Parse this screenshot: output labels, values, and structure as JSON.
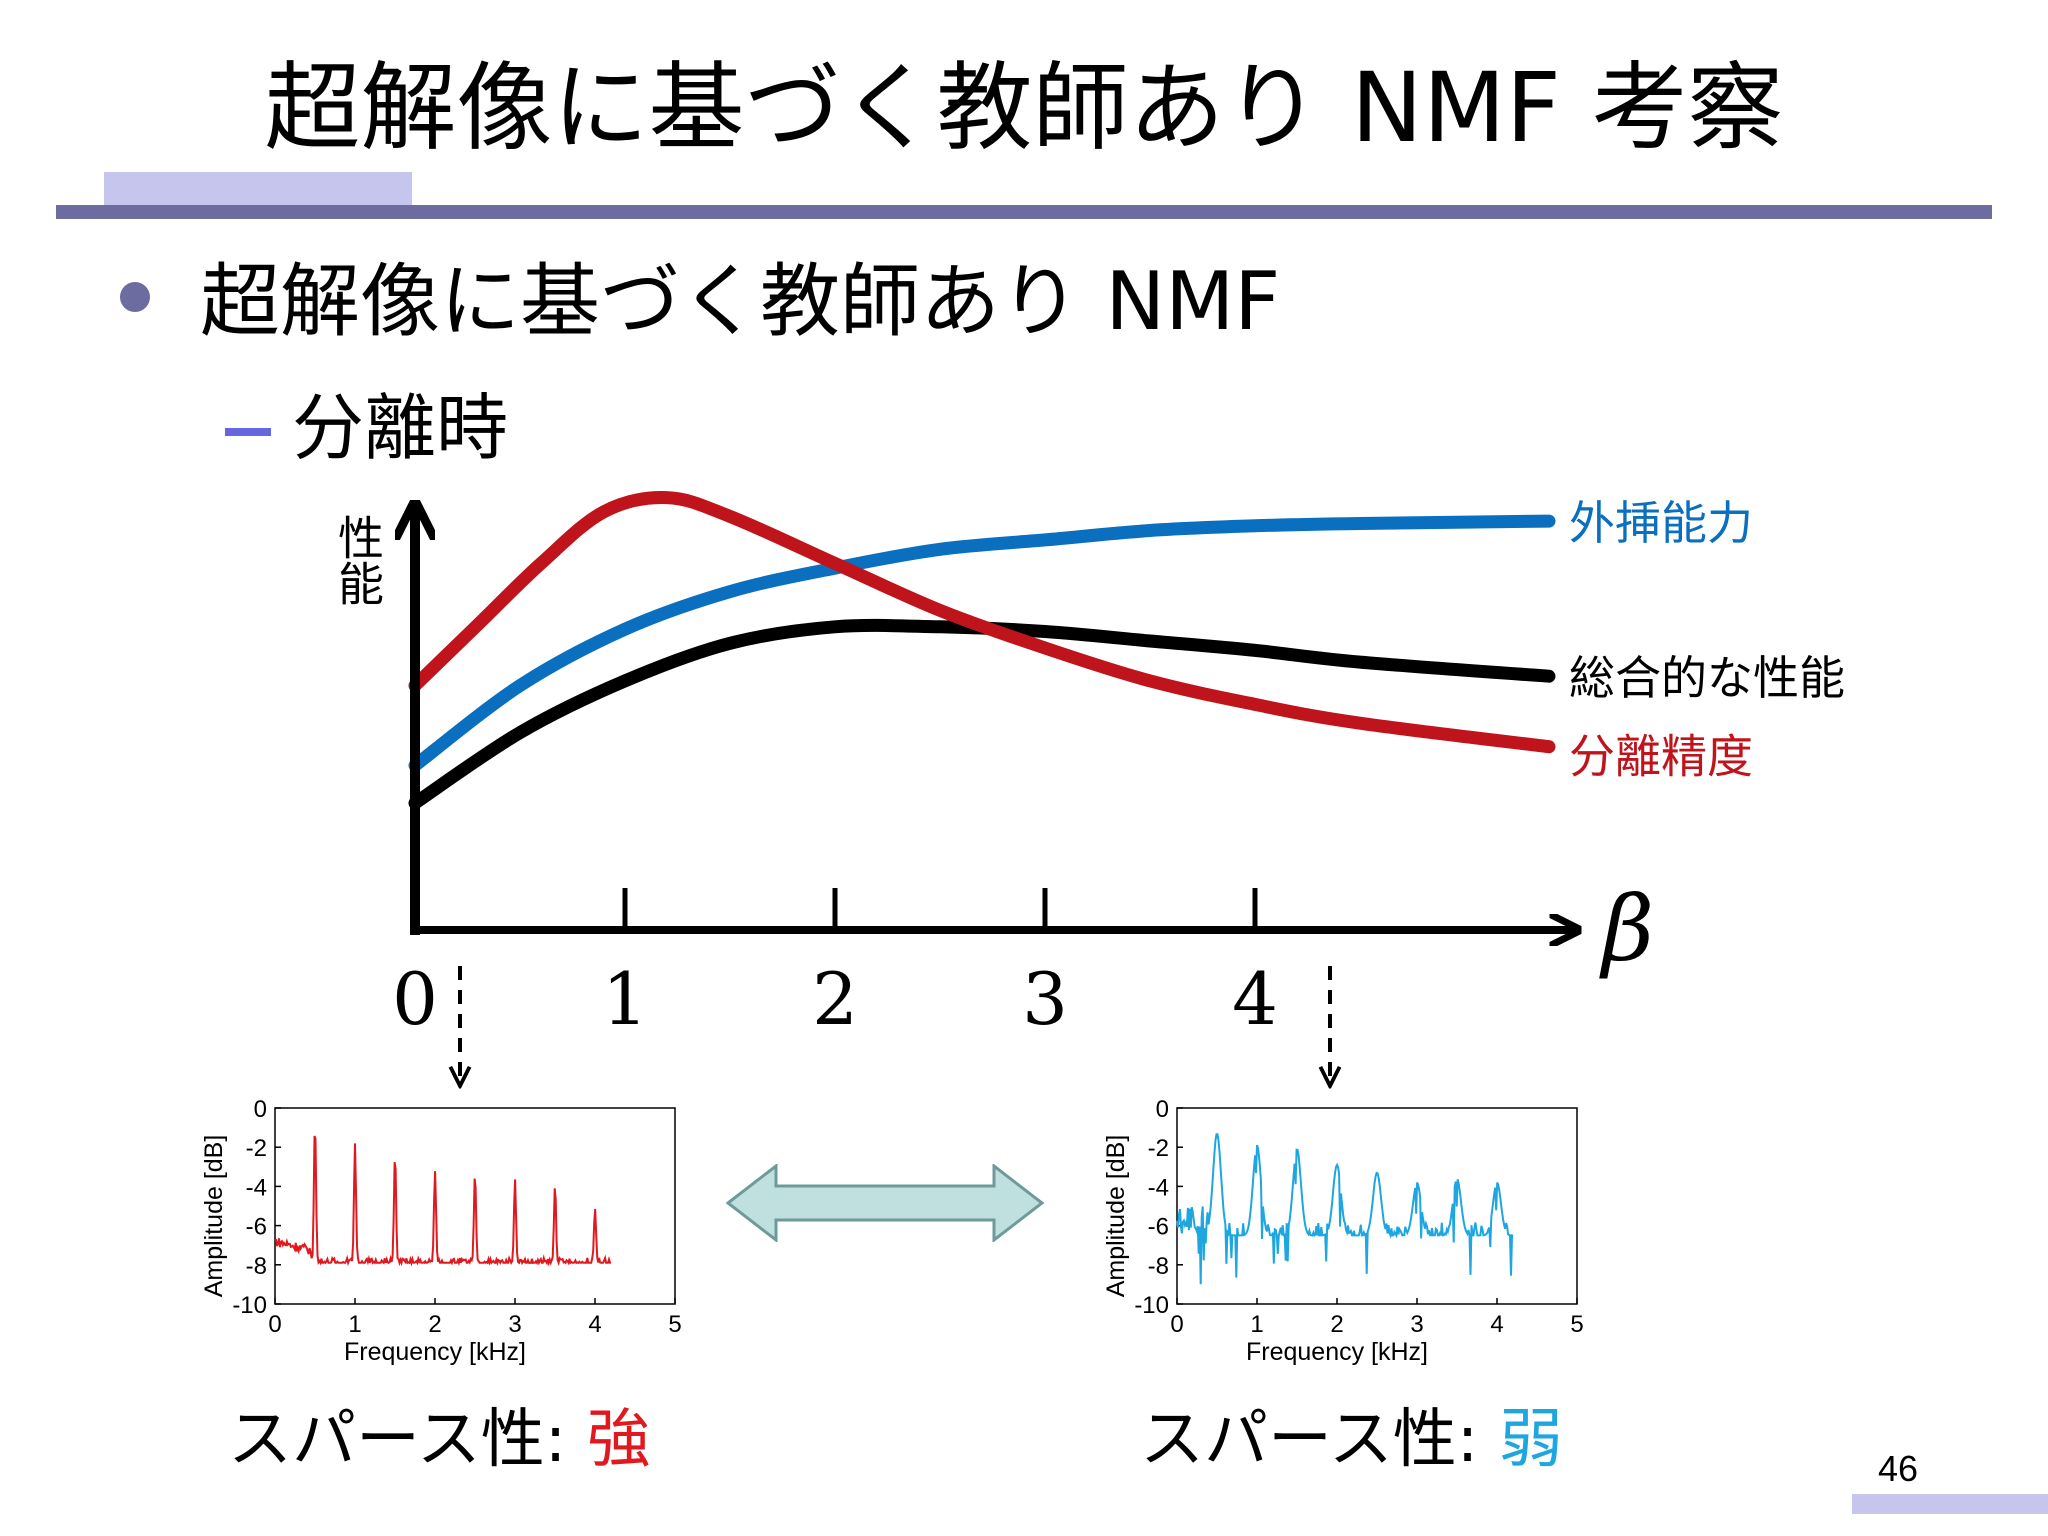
{
  "slide": {
    "title": "超解像に基づく教師あり NMF 考察",
    "bullet": "超解像に基づく教師あり NMF",
    "sub_bullet": "分離時",
    "page_number": "46"
  },
  "colors": {
    "accent": "#6c6ca0",
    "extrapolation": "#0b6fbf",
    "overall": "#000000",
    "separation": "#c0141c",
    "strong": "#e0191e",
    "weak": "#1ea6e0",
    "arrow_fill": "#c0e0e0"
  },
  "chart_data": [
    {
      "type": "line",
      "ylabel": "性能",
      "xlabel": "β",
      "x_ticks": [
        "0",
        "1",
        "2",
        "3",
        "4"
      ],
      "xlim": [
        0,
        5.4
      ],
      "ylim": [
        0,
        1
      ],
      "series": [
        {
          "name": "外挿能力",
          "color": "#0b6fbf",
          "x": [
            0,
            0.5,
            1,
            1.5,
            2,
            2.5,
            3,
            3.5,
            4,
            4.5,
            5.4
          ],
          "y": [
            0.35,
            0.52,
            0.64,
            0.72,
            0.77,
            0.81,
            0.83,
            0.85,
            0.86,
            0.865,
            0.87
          ]
        },
        {
          "name": "総合的な性能",
          "color": "#000000",
          "x": [
            0,
            0.5,
            1,
            1.5,
            2,
            2.5,
            3,
            3.5,
            4,
            4.5,
            5.4
          ],
          "y": [
            0.27,
            0.42,
            0.53,
            0.61,
            0.645,
            0.645,
            0.635,
            0.615,
            0.595,
            0.57,
            0.54
          ]
        },
        {
          "name": "分離精度",
          "color": "#c0141c",
          "x": [
            0,
            0.3,
            0.6,
            0.9,
            1.2,
            1.5,
            2,
            2.5,
            3,
            3.5,
            4,
            4.5,
            5.4
          ],
          "y": [
            0.52,
            0.65,
            0.78,
            0.89,
            0.92,
            0.88,
            0.78,
            0.68,
            0.6,
            0.53,
            0.48,
            0.44,
            0.39
          ]
        }
      ]
    },
    {
      "type": "line",
      "xlabel": "Frequency [kHz]",
      "ylabel": "Amplitude [dB]",
      "xlim": [
        0,
        5
      ],
      "ylim": [
        -10,
        0
      ],
      "x_ticks": [
        "0",
        "1",
        "2",
        "3",
        "4",
        "5"
      ],
      "y_ticks": [
        "0",
        "-2",
        "-4",
        "-6",
        "-8",
        "-10"
      ],
      "series": [
        {
          "color": "#e0191e",
          "x_max": 4.2,
          "f0": 0.5,
          "floor": -7.9,
          "peaks": [
            -0.7,
            -1.8,
            -2.3,
            -3.2,
            -3.3,
            -3.6,
            -3.9,
            -5.1
          ],
          "style": "sharp"
        }
      ]
    },
    {
      "type": "line",
      "xlabel": "Frequency [kHz]",
      "ylabel": "Amplitude [dB]",
      "xlim": [
        0,
        5
      ],
      "ylim": [
        -10,
        0
      ],
      "x_ticks": [
        "0",
        "1",
        "2",
        "3",
        "4",
        "5"
      ],
      "y_ticks": [
        "0",
        "-2",
        "-4",
        "-6",
        "-8",
        "-10"
      ],
      "series": [
        {
          "color": "#1ea6e0",
          "x_max": 4.2,
          "f0": 0.5,
          "floor": -6.5,
          "peaks": [
            -1.3,
            -1.9,
            -2.1,
            -2.9,
            -3.3,
            -3.8,
            -3.6,
            -3.8
          ],
          "style": "broad"
        }
      ]
    }
  ],
  "labels": {
    "sparsity_strong_prefix": "スパース性: ",
    "sparsity_strong_value": "強",
    "sparsity_weak_prefix": "スパース性: ",
    "sparsity_weak_value": "弱"
  }
}
